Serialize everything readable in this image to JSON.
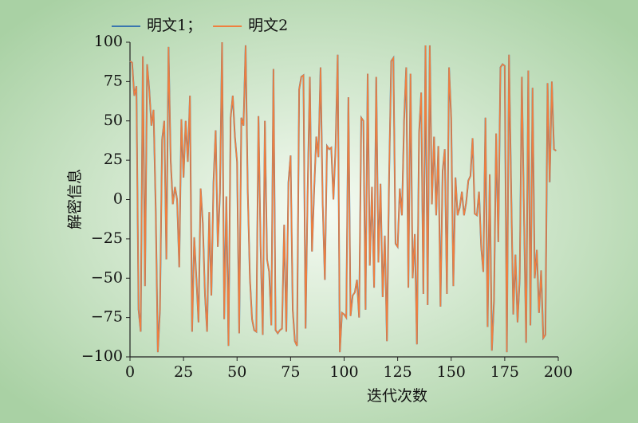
{
  "chart_data": {
    "type": "line",
    "xlabel": "迭代次数",
    "ylabel": "解密信息",
    "x": [
      0,
      1,
      2,
      3,
      4,
      5,
      6,
      7,
      8,
      9,
      10,
      11,
      12,
      13,
      14,
      15,
      16,
      17,
      18,
      19,
      20,
      21,
      22,
      23,
      24,
      25,
      26,
      27,
      28,
      29,
      30,
      31,
      32,
      33,
      34,
      35,
      36,
      37,
      38,
      39,
      40,
      41,
      42,
      43,
      44,
      45,
      46,
      47,
      48,
      49,
      50,
      51,
      52,
      53,
      54,
      55,
      56,
      57,
      58,
      59,
      60,
      61,
      62,
      63,
      64,
      65,
      66,
      67,
      68,
      69,
      70,
      71,
      72,
      73,
      74,
      75,
      76,
      77,
      78,
      79,
      80,
      81,
      82,
      83,
      84,
      85,
      86,
      87,
      88,
      89,
      90,
      91,
      92,
      93,
      94,
      95,
      96,
      97,
      98,
      99,
      100,
      101,
      102,
      103,
      104,
      105,
      106,
      107,
      108,
      109,
      110,
      111,
      112,
      113,
      114,
      115,
      116,
      117,
      118,
      119,
      120,
      121,
      122,
      123,
      124,
      125,
      126,
      127,
      128,
      129,
      130,
      131,
      132,
      133,
      134,
      135,
      136,
      137,
      138,
      139,
      140,
      141,
      142,
      143,
      144,
      145,
      146,
      147,
      148,
      149,
      150,
      151,
      152,
      153,
      154,
      155,
      156,
      157,
      158,
      159,
      160,
      161,
      162,
      163,
      164,
      165,
      166,
      167,
      168,
      169,
      170,
      171,
      172,
      173,
      174,
      175,
      176,
      177,
      178,
      179,
      180,
      181,
      182,
      183,
      184,
      185,
      186,
      187,
      188,
      189,
      190,
      191,
      192,
      193,
      194,
      195,
      196,
      197,
      198,
      199
    ],
    "series": [
      {
        "name": "明文1；",
        "color": "#3a76af",
        "values": [
          88,
          87,
          66,
          72,
          -70,
          -84,
          91,
          -55,
          86,
          70,
          47,
          57,
          -5,
          -97,
          -70,
          38,
          50,
          -38,
          97,
          25,
          -3,
          8,
          0,
          -43,
          51,
          14,
          50,
          24,
          66,
          -84,
          -24,
          -50,
          -78,
          7,
          -15,
          -60,
          -84,
          -8,
          -61,
          11,
          44,
          -30,
          4,
          100,
          -76,
          2,
          -93,
          52,
          66,
          40,
          24,
          -85,
          52,
          47,
          98,
          5,
          -50,
          -76,
          -83,
          -84,
          53,
          -30,
          -86,
          50,
          -38,
          -46,
          -80,
          83,
          -83,
          -85,
          -83,
          -82,
          -16,
          -84,
          11,
          28,
          -70,
          -90,
          -93,
          70,
          78,
          79,
          -82,
          8,
          78,
          -33,
          6,
          40,
          27,
          84,
          -3,
          -51,
          34,
          32,
          33,
          0,
          33,
          92,
          -97,
          -72,
          -73,
          -75,
          65,
          -74,
          -61,
          -59,
          -51,
          -75,
          52,
          50,
          -70,
          80,
          -42,
          8,
          -56,
          78,
          -40,
          10,
          -62,
          -23,
          -90,
          14,
          88,
          90,
          -28,
          -30,
          7,
          -10,
          50,
          84,
          -56,
          80,
          -50,
          -22,
          -92,
          42,
          68,
          -60,
          98,
          -67,
          98,
          -3,
          40,
          -10,
          34,
          -68,
          18,
          32,
          -60,
          84,
          52,
          -55,
          14,
          -10,
          -5,
          5,
          -10,
          -2,
          12,
          15,
          39,
          -9,
          -10,
          5,
          -30,
          -46,
          52,
          -81,
          16,
          -96,
          -64,
          42,
          -27,
          84,
          86,
          85,
          -97,
          92,
          7,
          -73,
          -35,
          -78,
          -50,
          78,
          -10,
          -91,
          82,
          -80,
          71,
          -50,
          -32,
          -72,
          -45,
          -88,
          -86,
          74,
          11,
          75,
          32,
          31
        ]
      },
      {
        "name": "明文2",
        "color": "#ef7f3f",
        "values": [
          88,
          87,
          66,
          72,
          -70,
          -84,
          91,
          -55,
          86,
          70,
          47,
          57,
          -5,
          -97,
          -70,
          38,
          50,
          -38,
          97,
          25,
          -3,
          8,
          0,
          -43,
          51,
          14,
          50,
          24,
          66,
          -84,
          -24,
          -50,
          -78,
          7,
          -15,
          -60,
          -84,
          -8,
          -61,
          11,
          44,
          -30,
          4,
          100,
          -76,
          2,
          -93,
          52,
          66,
          40,
          24,
          -85,
          52,
          47,
          98,
          5,
          -50,
          -76,
          -83,
          -84,
          53,
          -30,
          -86,
          50,
          -38,
          -46,
          -80,
          83,
          -83,
          -85,
          -83,
          -82,
          -16,
          -84,
          11,
          28,
          -70,
          -90,
          -93,
          70,
          78,
          79,
          -82,
          8,
          78,
          -33,
          6,
          40,
          27,
          84,
          -3,
          -51,
          34,
          32,
          33,
          0,
          33,
          92,
          -97,
          -72,
          -73,
          -75,
          65,
          -74,
          -61,
          -59,
          -51,
          -75,
          52,
          50,
          -70,
          80,
          -42,
          8,
          -56,
          78,
          -40,
          10,
          -62,
          -23,
          -90,
          14,
          88,
          90,
          -28,
          -30,
          7,
          -10,
          50,
          84,
          -56,
          80,
          -50,
          -22,
          -92,
          42,
          68,
          -60,
          98,
          -67,
          98,
          -3,
          40,
          -10,
          34,
          -68,
          18,
          32,
          -60,
          84,
          52,
          -55,
          14,
          -10,
          -5,
          5,
          -10,
          -2,
          12,
          15,
          39,
          -9,
          -10,
          5,
          -30,
          -46,
          52,
          -81,
          16,
          -96,
          -64,
          42,
          -27,
          84,
          86,
          85,
          -97,
          92,
          7,
          -73,
          -35,
          -78,
          -50,
          78,
          -10,
          -91,
          82,
          -80,
          71,
          -50,
          -32,
          -72,
          -45,
          -88,
          -86,
          74,
          11,
          75,
          32,
          31
        ]
      }
    ],
    "xlim": [
      0,
      200
    ],
    "xticks": [
      0,
      25,
      50,
      75,
      100,
      125,
      150,
      175,
      200
    ],
    "ylim": [
      -100,
      100
    ],
    "yticks": [
      {
        "value": -100,
        "label": "−100"
      },
      {
        "value": -75,
        "label": "−75"
      },
      {
        "value": -50,
        "label": "−50"
      },
      {
        "value": -25,
        "label": "−25"
      },
      0,
      25,
      50,
      75,
      100
    ],
    "legend": "upper left"
  }
}
